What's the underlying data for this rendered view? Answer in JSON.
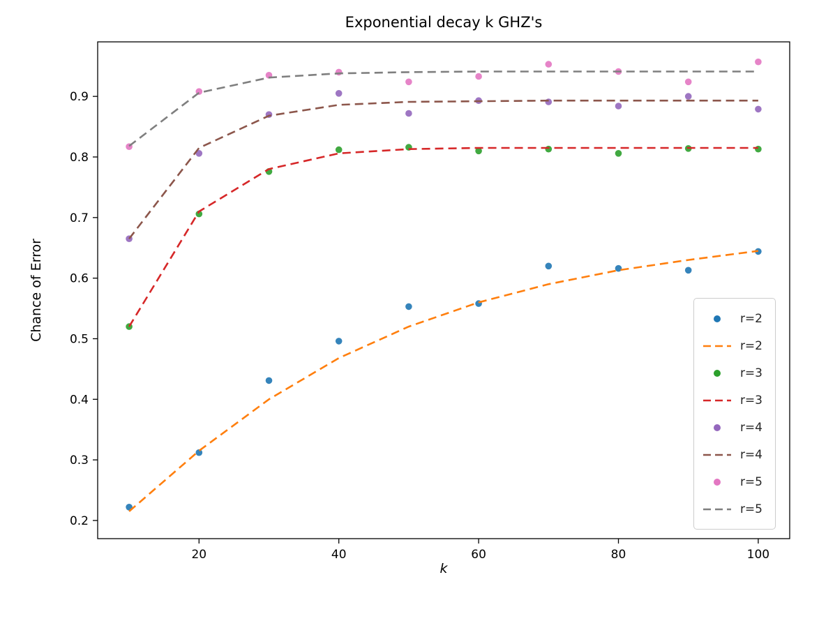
{
  "chart_data": {
    "type": "scatter",
    "title": "Exponential decay k GHZ's",
    "xlabel": "k",
    "ylabel": "Chance of Error",
    "xlim": [
      5.5,
      104.5
    ],
    "ylim": [
      0.17,
      0.99
    ],
    "xticks": [
      20,
      40,
      60,
      80,
      100
    ],
    "yticks": [
      0.2,
      0.3,
      0.4,
      0.5,
      0.6,
      0.7,
      0.8,
      0.9
    ],
    "grid": false,
    "legend_position": "lower right",
    "x": [
      10,
      20,
      30,
      40,
      50,
      60,
      70,
      80,
      90,
      100
    ],
    "series": [
      {
        "name": "r=2",
        "kind": "scatter",
        "color": "#1f77b4",
        "values": [
          0.222,
          0.312,
          0.431,
          0.496,
          0.553,
          0.558,
          0.62,
          0.616,
          0.613,
          0.644
        ]
      },
      {
        "name": "r=2",
        "kind": "line",
        "dashed": true,
        "color": "#ff7f0e",
        "values": [
          0.215,
          0.315,
          0.4,
          0.468,
          0.52,
          0.56,
          0.59,
          0.613,
          0.63,
          0.645
        ]
      },
      {
        "name": "r=3",
        "kind": "scatter",
        "color": "#2ca02c",
        "values": [
          0.52,
          0.706,
          0.776,
          0.812,
          0.816,
          0.81,
          0.813,
          0.806,
          0.814,
          0.813
        ]
      },
      {
        "name": "r=3",
        "kind": "line",
        "dashed": true,
        "color": "#d62728",
        "values": [
          0.52,
          0.71,
          0.78,
          0.806,
          0.813,
          0.815,
          0.815,
          0.815,
          0.815,
          0.815
        ]
      },
      {
        "name": "r=4",
        "kind": "scatter",
        "color": "#9467bd",
        "values": [
          0.665,
          0.806,
          0.87,
          0.905,
          0.872,
          0.893,
          0.891,
          0.884,
          0.9,
          0.879
        ]
      },
      {
        "name": "r=4",
        "kind": "line",
        "dashed": true,
        "color": "#8c564b",
        "values": [
          0.665,
          0.815,
          0.868,
          0.886,
          0.891,
          0.892,
          0.893,
          0.893,
          0.893,
          0.893
        ]
      },
      {
        "name": "r=5",
        "kind": "scatter",
        "color": "#e377c2",
        "values": [
          0.817,
          0.908,
          0.935,
          0.94,
          0.924,
          0.933,
          0.953,
          0.941,
          0.924,
          0.957
        ]
      },
      {
        "name": "r=5",
        "kind": "line",
        "dashed": true,
        "color": "#7f7f7f",
        "values": [
          0.818,
          0.906,
          0.931,
          0.938,
          0.94,
          0.941,
          0.941,
          0.941,
          0.941,
          0.941
        ]
      }
    ]
  }
}
